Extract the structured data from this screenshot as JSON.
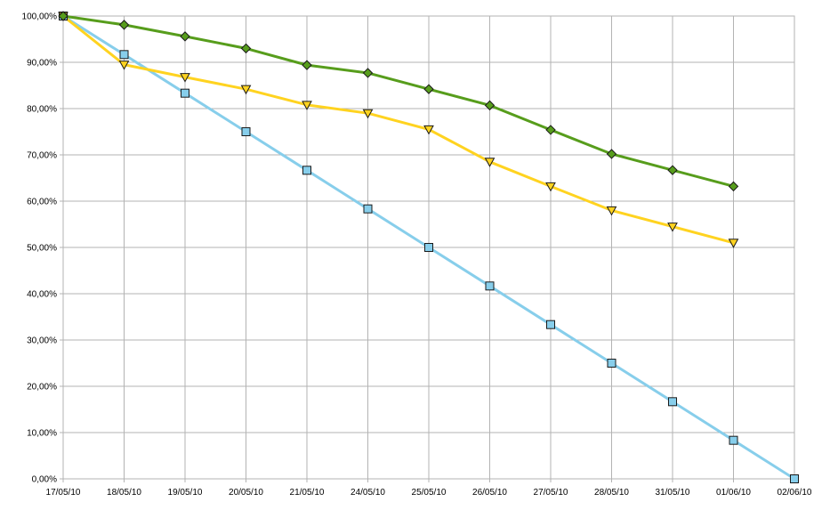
{
  "chart_data": {
    "type": "line",
    "title": "",
    "xlabel": "",
    "ylabel": "",
    "categories": [
      "17/05/10",
      "18/05/10",
      "19/05/10",
      "20/05/10",
      "21/05/10",
      "24/05/10",
      "25/05/10",
      "26/05/10",
      "27/05/10",
      "28/05/10",
      "31/05/10",
      "01/06/10",
      "02/06/10"
    ],
    "ylim": [
      0,
      100
    ],
    "y_ticks": [
      "0,00%",
      "10,00%",
      "20,00%",
      "30,00%",
      "40,00%",
      "50,00%",
      "60,00%",
      "70,00%",
      "80,00%",
      "90,00%",
      "100,00%"
    ],
    "grid": true,
    "legend": "none",
    "series": [
      {
        "color": "#87CEEB",
        "marker": "square",
        "values": [
          100,
          91.67,
          83.33,
          75,
          66.67,
          58.33,
          50,
          41.67,
          33.33,
          25,
          16.67,
          8.33,
          0
        ]
      },
      {
        "color": "#FFD320",
        "marker": "triangle-down",
        "values": [
          100,
          89.5,
          86.8,
          84.2,
          80.8,
          79,
          75.5,
          68.5,
          63.2,
          58,
          54.5,
          51,
          null
        ]
      },
      {
        "color": "#579D1C",
        "marker": "diamond",
        "values": [
          100,
          98.1,
          95.6,
          93,
          89.4,
          87.7,
          84.2,
          80.7,
          75.4,
          70.2,
          66.7,
          63.2,
          null
        ]
      }
    ]
  }
}
